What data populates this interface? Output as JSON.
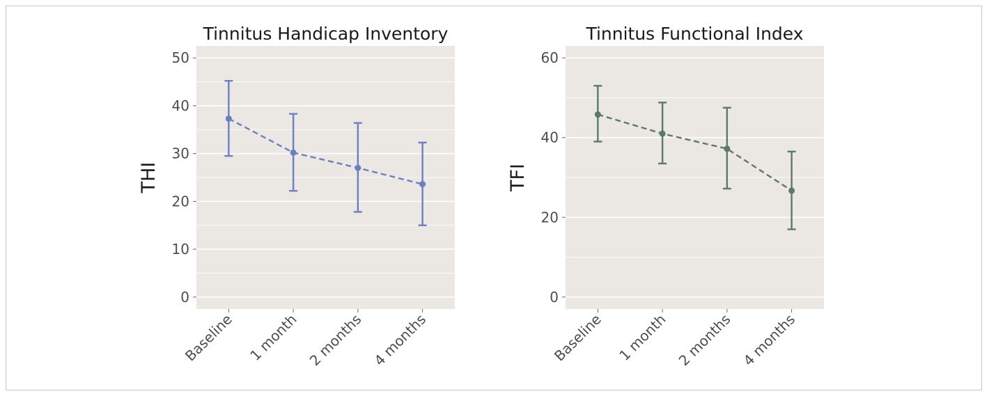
{
  "chart_data": [
    {
      "type": "line",
      "title": "Tinnitus Handicap Inventory",
      "xlabel": "",
      "ylabel": "THI",
      "categories": [
        "Baseline",
        "1 month",
        "2 months",
        "4 months"
      ],
      "ylim": [
        -2.5,
        52.5
      ],
      "yticks": [
        0,
        10,
        20,
        30,
        40,
        50
      ],
      "color": "#6a7fc4",
      "grid": true,
      "series": [
        {
          "values": [
            37.3,
            30.2,
            27.0,
            23.6
          ],
          "error_low": [
            29.5,
            22.2,
            17.8,
            15.0
          ],
          "error_high": [
            45.2,
            38.3,
            36.4,
            32.3
          ]
        }
      ]
    },
    {
      "type": "line",
      "title": "Tinnitus Functional Index",
      "xlabel": "",
      "ylabel": "TFI",
      "categories": [
        "Baseline",
        "1 month",
        "2 months",
        "4 months"
      ],
      "ylim": [
        -3,
        63
      ],
      "yticks": [
        0,
        20,
        40,
        60
      ],
      "color": "#5a7a66",
      "grid": true,
      "series": [
        {
          "values": [
            45.8,
            41.0,
            37.2,
            26.7
          ],
          "error_low": [
            39.0,
            33.5,
            27.2,
            17.0
          ],
          "error_high": [
            53.0,
            48.8,
            47.5,
            36.5
          ]
        }
      ]
    }
  ]
}
